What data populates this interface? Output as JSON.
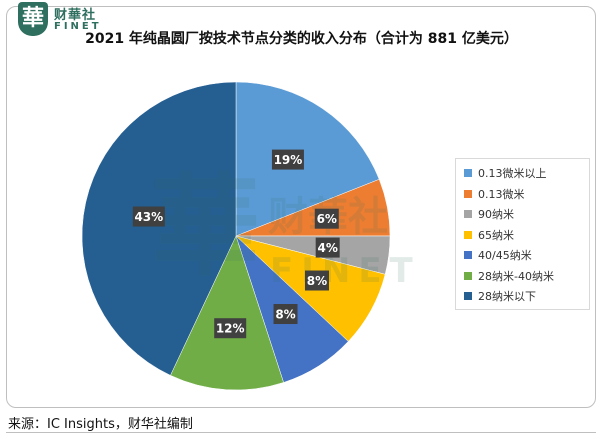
{
  "logo": {
    "mark": "華",
    "name_cn": "财華社",
    "name_en": "FINET"
  },
  "watermark": {
    "mark": "華",
    "name_cn": "财華社",
    "name_en": "FINET"
  },
  "chart_data": {
    "type": "pie",
    "title": "2021 年纯晶圆厂按技术节点分类的收入分布（合计为 881 亿美元）",
    "categories": [
      "0.13微米以上",
      "0.13微米",
      "90纳米",
      "65纳米",
      "40/45纳米",
      "28纳米-40纳米",
      "28纳米以下"
    ],
    "values": [
      19,
      6,
      4,
      8,
      8,
      12,
      43
    ],
    "data_labels": [
      "19%",
      "6%",
      "4%",
      "8%",
      "8%",
      "12%",
      "43%"
    ],
    "colors": [
      "#5b9bd5",
      "#ed7d31",
      "#a5a5a5",
      "#ffc000",
      "#4472c4",
      "#70ad47",
      "#255e91"
    ],
    "legend_position": "right",
    "start_angle_deg": 0,
    "direction": "clockwise"
  },
  "source": "来源：IC Insights，财华社编制"
}
